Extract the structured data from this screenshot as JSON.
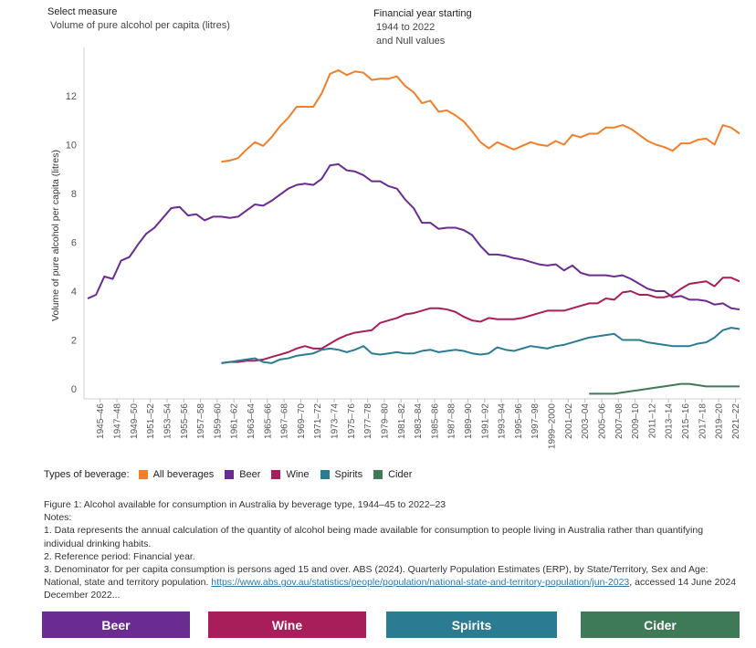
{
  "header": {
    "measure_title": "Select measure",
    "measure_value": "Volume of pure alcohol per capita (litres)",
    "year_title": "Financial year starting",
    "year_range": "1944 to 2022",
    "year_null": "and Null values"
  },
  "legend": {
    "label": "Types of beverage:",
    "items": [
      {
        "name": "All beverages",
        "color": "#f07f2b"
      },
      {
        "name": "Beer",
        "color": "#6a2c91"
      },
      {
        "name": "Wine",
        "color": "#a81e5a"
      },
      {
        "name": "Spirits",
        "color": "#2b7c93"
      },
      {
        "name": "Cider",
        "color": "#3e7a57"
      }
    ]
  },
  "notes": {
    "figure": "Figure 1: Alcohol available for consumption in Australia by beverage type, 1944–45 to 2022–23",
    "heading": "Notes:",
    "n1": "1. Data represents the annual calculation of the quantity of alcohol being made available for consumption to people living in Australia rather than quantifying individual drinking habits.",
    "n2": "2. Reference period: Financial year.",
    "n3_text": "3. Denominator for per capita consumption is persons aged 15 and over. ABS (2024). Quarterly Population Estimates (ERP), by State/Territory, Sex and Age: National, state and territory population.",
    "n3_link": "https://www.abs.gov.au/statistics/people/population/national-state-and-territory-population/jun-2023",
    "n3_tail": ", accessed 14 June 2024 December 2022..."
  },
  "buttons": {
    "beer": "Beer",
    "wine": "Wine",
    "spirits": "Spirits",
    "cider": "Cider"
  },
  "chart_data": {
    "type": "line",
    "title": "Alcohol available for consumption in Australia by beverage type",
    "xlabel": "",
    "ylabel": "Volume of pure alcohol per capita (litres)",
    "ylim": [
      0,
      14
    ],
    "yticks": [
      0,
      2,
      4,
      6,
      8,
      10,
      12
    ],
    "x_start_year": 1944,
    "x_end_year": 2022,
    "tick_labels": [
      "1945–46",
      "1947–48",
      "1949–50",
      "1951–52",
      "1953–54",
      "1955–56",
      "1957–58",
      "1959–60",
      "1961–62",
      "1963–64",
      "1965–66",
      "1967–68",
      "1969–70",
      "1971–72",
      "1973–74",
      "1975–76",
      "1977–78",
      "1979–80",
      "1981–82",
      "1983–84",
      "1985–86",
      "1987–88",
      "1989–90",
      "1991–92",
      "1993–94",
      "1995–96",
      "1997–98",
      "1999–2000",
      "2001–02",
      "2003–04",
      "2005–06",
      "2007–08",
      "2009–10",
      "2011–12",
      "2013–14",
      "2015–16",
      "2017–18",
      "2019–20",
      "2021–22"
    ],
    "tick_years": [
      1945,
      1947,
      1949,
      1951,
      1953,
      1955,
      1957,
      1959,
      1961,
      1963,
      1965,
      1967,
      1969,
      1971,
      1973,
      1975,
      1977,
      1979,
      1981,
      1983,
      1985,
      1987,
      1989,
      1991,
      1993,
      1995,
      1997,
      1999,
      2001,
      2003,
      2005,
      2007,
      2009,
      2011,
      2013,
      2015,
      2017,
      2019,
      2021
    ],
    "series": [
      {
        "name": "All beverages",
        "color": "#f07f2b",
        "start_year": 1960,
        "values": [
          9.3,
          9.35,
          9.45,
          9.8,
          10.1,
          9.95,
          10.3,
          10.75,
          11.1,
          11.55,
          11.55,
          11.55,
          12.1,
          12.9,
          13.05,
          12.85,
          13.0,
          12.95,
          12.65,
          12.7,
          12.7,
          12.8,
          12.4,
          12.15,
          11.7,
          11.8,
          11.35,
          11.4,
          11.2,
          10.95,
          10.55,
          10.1,
          9.85,
          10.1,
          9.95,
          9.8,
          9.95,
          10.1,
          10.0,
          9.95,
          10.15,
          10.0,
          10.4,
          10.3,
          10.45,
          10.45,
          10.7,
          10.7,
          10.8,
          10.65,
          10.4,
          10.15,
          10.0,
          9.9,
          9.75,
          10.05,
          10.05,
          10.2,
          10.25,
          10.0,
          10.8,
          10.7,
          10.45
        ]
      },
      {
        "name": "Beer",
        "color": "#6a2c91",
        "start_year": 1944,
        "values": [
          3.7,
          3.85,
          4.6,
          4.5,
          5.25,
          5.4,
          5.9,
          6.35,
          6.6,
          7.0,
          7.4,
          7.45,
          7.1,
          7.15,
          6.9,
          7.05,
          7.05,
          7.0,
          7.05,
          7.3,
          7.55,
          7.5,
          7.7,
          7.95,
          8.2,
          8.35,
          8.4,
          8.35,
          8.6,
          9.15,
          9.2,
          8.95,
          8.9,
          8.75,
          8.5,
          8.5,
          8.3,
          8.2,
          7.75,
          7.4,
          6.8,
          6.8,
          6.55,
          6.6,
          6.6,
          6.5,
          6.3,
          5.85,
          5.5,
          5.5,
          5.45,
          5.35,
          5.3,
          5.2,
          5.1,
          5.05,
          5.1,
          4.85,
          5.05,
          4.75,
          4.65,
          4.65,
          4.65,
          4.6,
          4.65,
          4.5,
          4.3,
          4.1,
          4.0,
          4.0,
          3.75,
          3.8,
          3.65,
          3.65,
          3.6,
          3.45,
          3.5,
          3.3,
          3.25
        ]
      },
      {
        "name": "Wine",
        "color": "#a81e5a",
        "start_year": 1960,
        "values": [
          1.05,
          1.1,
          1.1,
          1.15,
          1.15,
          1.2,
          1.3,
          1.4,
          1.5,
          1.65,
          1.75,
          1.65,
          1.65,
          1.85,
          2.05,
          2.2,
          2.3,
          2.35,
          2.4,
          2.7,
          2.8,
          2.9,
          3.05,
          3.1,
          3.2,
          3.3,
          3.3,
          3.25,
          3.15,
          2.95,
          2.8,
          2.75,
          2.9,
          2.85,
          2.85,
          2.85,
          2.9,
          3.0,
          3.1,
          3.2,
          3.2,
          3.2,
          3.3,
          3.4,
          3.5,
          3.5,
          3.7,
          3.65,
          3.95,
          4.0,
          3.85,
          3.85,
          3.75,
          3.75,
          3.85,
          4.1,
          4.3,
          4.35,
          4.4,
          4.2,
          4.55,
          4.55,
          4.4
        ]
      },
      {
        "name": "Spirits",
        "color": "#2b7c93",
        "start_year": 1960,
        "values": [
          1.05,
          1.1,
          1.15,
          1.2,
          1.25,
          1.1,
          1.05,
          1.2,
          1.25,
          1.35,
          1.4,
          1.45,
          1.6,
          1.65,
          1.6,
          1.5,
          1.6,
          1.75,
          1.45,
          1.4,
          1.45,
          1.5,
          1.45,
          1.45,
          1.55,
          1.6,
          1.5,
          1.55,
          1.6,
          1.55,
          1.45,
          1.4,
          1.45,
          1.7,
          1.6,
          1.55,
          1.65,
          1.75,
          1.7,
          1.65,
          1.75,
          1.8,
          1.9,
          2.0,
          2.1,
          2.15,
          2.2,
          2.25,
          2.0,
          2.0,
          2.0,
          1.9,
          1.85,
          1.8,
          1.75,
          1.75,
          1.75,
          1.85,
          1.9,
          2.1,
          2.4,
          2.5,
          2.45
        ]
      },
      {
        "name": "Cider",
        "color": "#3e7a57",
        "start_year": 2004,
        "values": [
          -0.2,
          -0.2,
          -0.2,
          -0.2,
          -0.15,
          -0.1,
          -0.05,
          0.0,
          0.05,
          0.1,
          0.15,
          0.2,
          0.2,
          0.15,
          0.1,
          0.1,
          0.1,
          0.1,
          0.1
        ]
      }
    ]
  }
}
